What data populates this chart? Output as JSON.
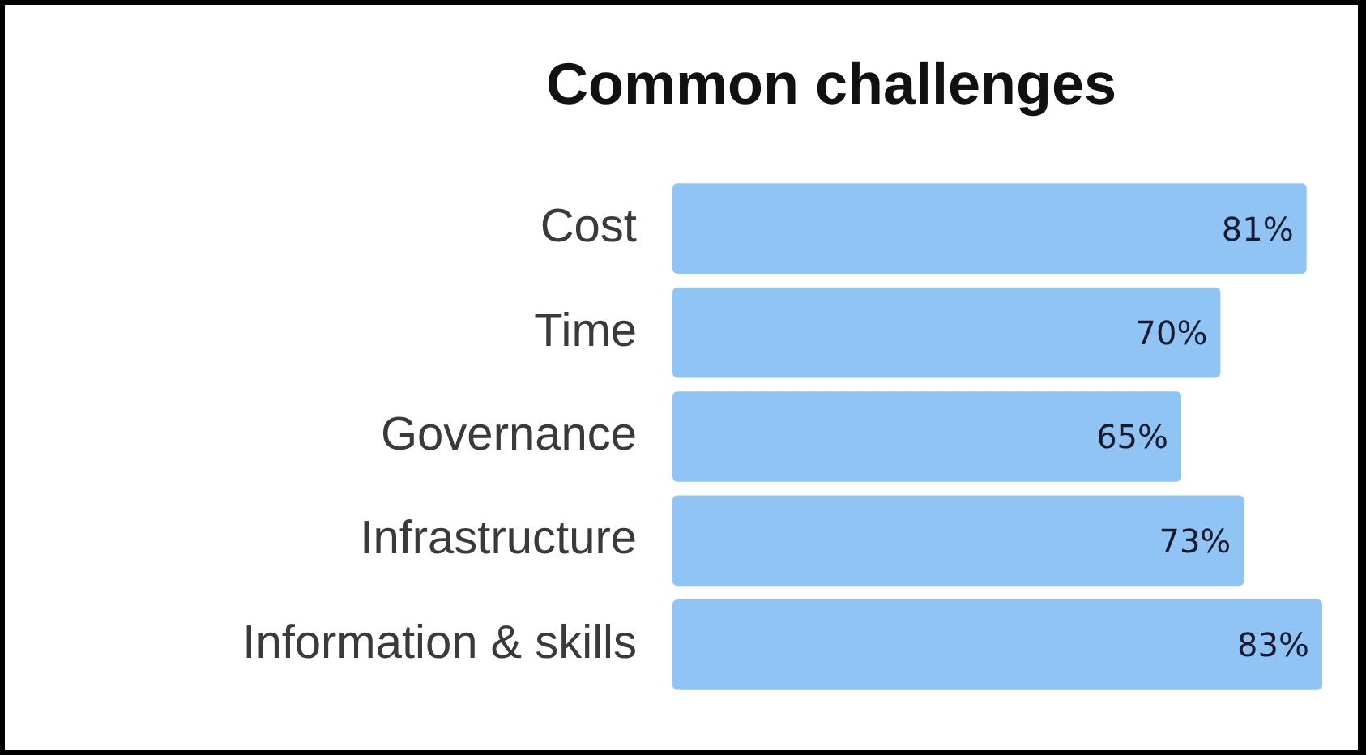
{
  "chart_data": {
    "type": "bar",
    "orientation": "horizontal",
    "title": "Common challenges",
    "categories": [
      "Cost",
      "Time",
      "Governance",
      "Infrastructure",
      "Information & skills"
    ],
    "values": [
      81,
      70,
      65,
      73,
      83
    ],
    "color": "#90c4f5",
    "value_labels": [
      "81%",
      "70%",
      "65%",
      "73%",
      "83%"
    ]
  }
}
